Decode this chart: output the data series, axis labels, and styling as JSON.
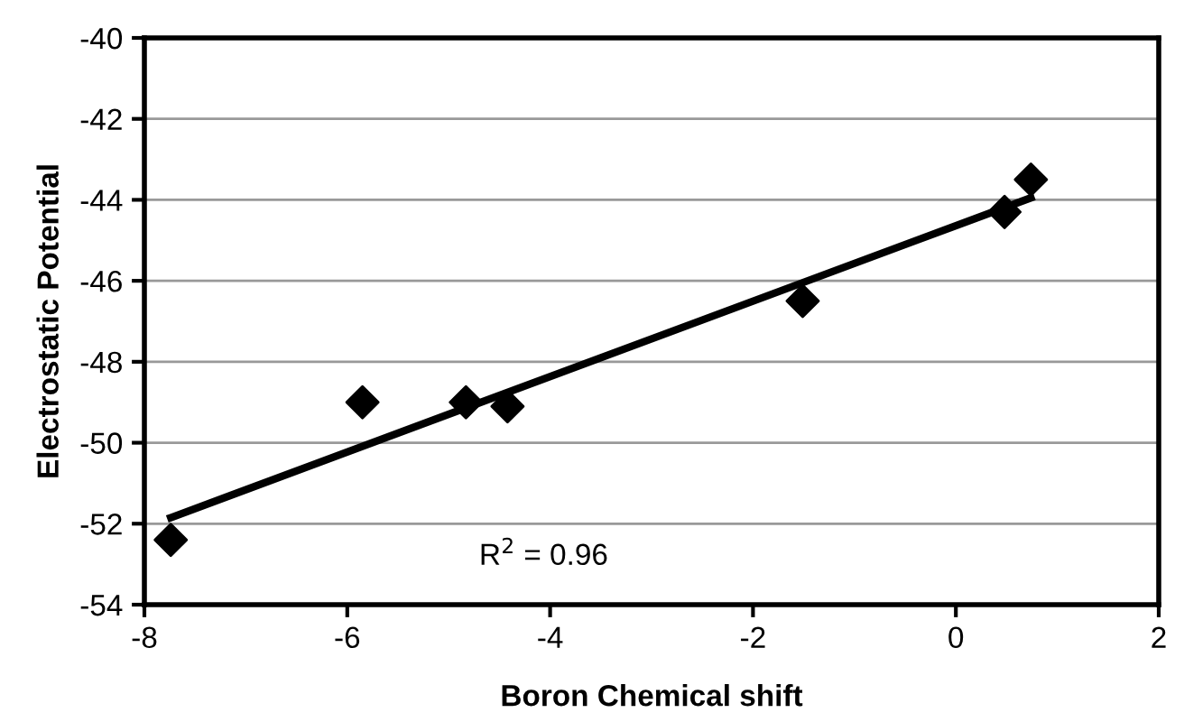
{
  "chart_data": {
    "type": "scatter",
    "xlabel": "Boron Chemical shift",
    "ylabel": "Electrostatic Potential",
    "series": [
      {
        "color": "#000000",
        "marker": "diamond",
        "x": [
          -7.74,
          -5.85,
          -4.83,
          -4.42,
          -1.51,
          0.48,
          0.74
        ],
        "values": [
          -52.4,
          -49.0,
          -49.0,
          -49.1,
          -46.5,
          -44.3,
          -43.5
        ]
      },
      {
        "type": "line",
        "color": "#000000",
        "line_style": "solid",
        "x": [
          -7.74,
          0.74
        ],
        "values": [
          -51.85,
          -43.95
        ]
      }
    ],
    "xlim": [
      -8,
      2
    ],
    "xticks": [
      -8,
      -6,
      -4,
      -2,
      0,
      2
    ],
    "ylim": [
      -54,
      -40
    ],
    "yticks": [
      -54,
      -52,
      -50,
      -48,
      -46,
      -44,
      -42,
      -40
    ],
    "grid": "y",
    "legend": false,
    "annotations": [
      "R$^{2}$ = 0.96"
    ]
  }
}
